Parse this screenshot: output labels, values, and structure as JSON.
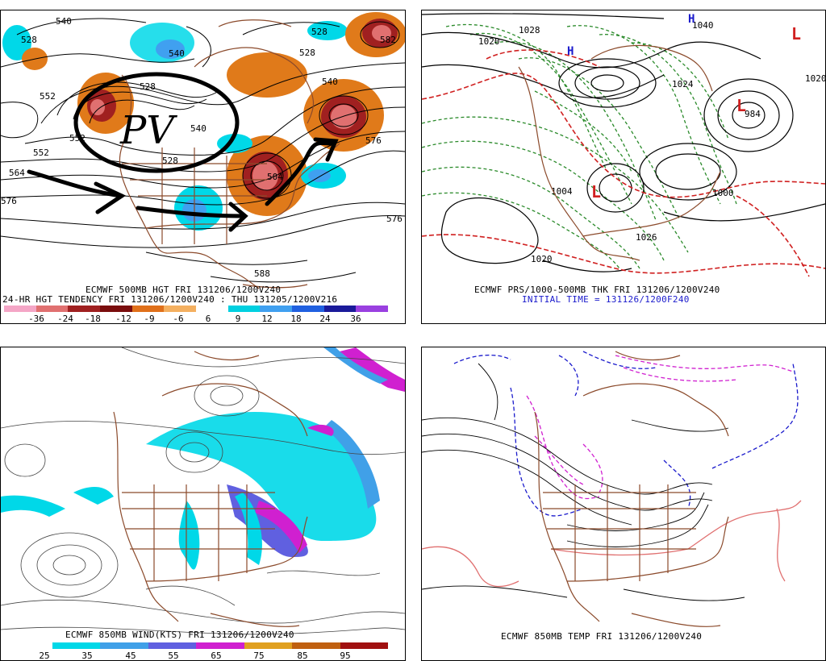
{
  "panels": {
    "top_left": {
      "caption1": "ECMWF 500MB HGT FRI 131206/1200V240",
      "caption2": "24-HR HGT TENDENCY FRI 131206/1200V240 : THU 131205/1200V216",
      "annotation": "PV",
      "contour_labels": [
        "528",
        "540",
        "552",
        "552",
        "564",
        "576",
        "576",
        "540",
        "528",
        "540",
        "582",
        "528",
        "588",
        "540",
        "552",
        "504",
        "528",
        "576",
        "528"
      ],
      "scale_ticks": [
        "-36",
        "-24",
        "-18",
        "-12",
        "-9",
        "-6",
        "6",
        "9",
        "12",
        "18",
        "24",
        "36"
      ],
      "scale_colors": [
        "#f4a6c6",
        "#e07070",
        "#a02020",
        "#7a0d0d",
        "#e0701a",
        "#f4b060",
        "#ffffff",
        "#00d0e0",
        "#40a0f0",
        "#2060e0",
        "#1a1a9a",
        "#9a40e0"
      ]
    },
    "top_right": {
      "caption1": "ECMWF PRS/1000-500MB THK FRI 131206/1200V240",
      "caption2": "INITIAL TIME = 131126/1200F240",
      "labels": [
        "1020",
        "1028",
        "1040",
        "1020",
        "1004",
        "L",
        "L",
        "L",
        "H",
        "H",
        "984",
        "1020",
        "1024",
        "1000",
        "1026"
      ]
    },
    "bottom_left": {
      "caption1": "ECMWF 850MB WIND(KTS) FRI 131206/1200V240",
      "scale_ticks": [
        "25",
        "35",
        "45",
        "55",
        "65",
        "75",
        "85",
        "95"
      ],
      "scale_colors": [
        "#ffffff",
        "#00d8e8",
        "#40a0e8",
        "#6060e0",
        "#d020d0",
        "#e0a020",
        "#c06010",
        "#a01010"
      ]
    },
    "bottom_right": {
      "caption1": "ECMWF 850MB TEMP FRI 131206/1200V240"
    }
  },
  "colors": {
    "map_outline": "#8b4a2b",
    "contour": "#000000",
    "cyan": "#00d8e8",
    "orange": "#e07a1a",
    "red": "#d02020",
    "green": "#2a8a2a",
    "magenta": "#d020d0",
    "blue": "#1a1acc",
    "salmon": "#e07070"
  }
}
